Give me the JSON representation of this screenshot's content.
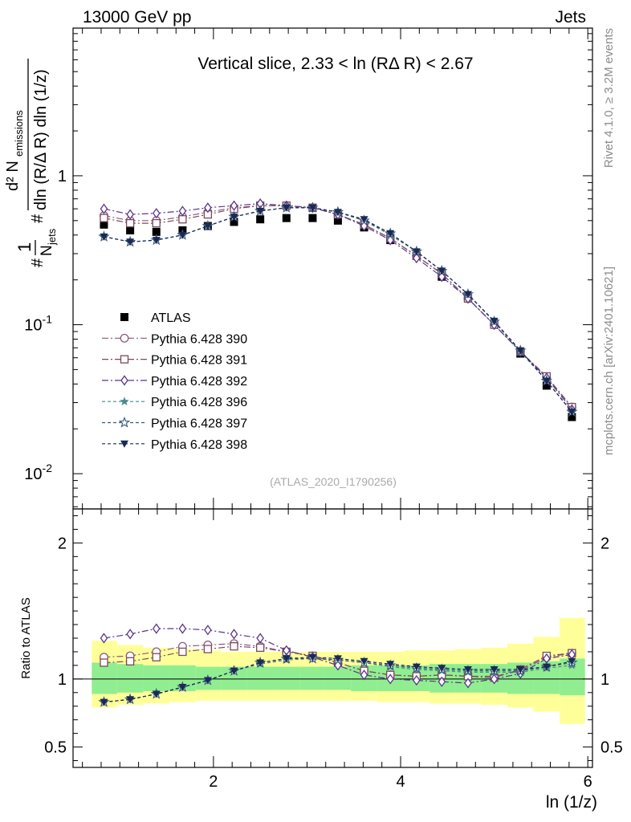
{
  "header": {
    "energy_label": "13000 GeV pp",
    "process_label": "Jets"
  },
  "side_labels": {
    "rivet": "Rivet 4.1.0, ≥ 3.2M events",
    "source": "mcplots.cern.ch [arXiv:2401.10621]"
  },
  "analysis_id": "(ATLAS_2020_I1790256)",
  "colors": {
    "data": "#000000",
    "p390": "#8a5a7f",
    "p391": "#7a4a5a",
    "p392": "#5a3590",
    "p396": "#4a8a8a",
    "p397": "#3a5a7a",
    "p398": "#1a2a55",
    "band_inner": "#90ee90",
    "band_outer": "#ffff99"
  },
  "chart_data": [
    {
      "type": "scatter",
      "title": "Vertical slice, 2.33 < ln (RΔ R) < 2.67",
      "xlabel": "ln (1/z)",
      "ylabel": "1/N_jets d²N_emissions / dln(R/ΔR) dln(1/z)",
      "y_scale": "log",
      "xlim": [
        0.5,
        6.05
      ],
      "ylim": [
        0.0058,
        9.8
      ],
      "y_ticks": [
        0.01,
        0.1,
        1
      ],
      "y_tick_labels": [
        "10^-2",
        "10^-1",
        "1"
      ],
      "x": [
        0.83,
        1.11,
        1.39,
        1.67,
        1.94,
        2.22,
        2.5,
        2.78,
        3.06,
        3.33,
        3.61,
        3.89,
        4.17,
        4.44,
        4.72,
        5.0,
        5.28,
        5.56,
        5.83
      ],
      "series": [
        {
          "name": "ATLAS",
          "key": "data",
          "marker": "square",
          "values": [
            0.47,
            0.43,
            0.42,
            0.43,
            0.46,
            0.49,
            0.51,
            0.52,
            0.52,
            0.5,
            0.45,
            0.37,
            0.29,
            0.21,
            0.15,
            0.1,
            0.064,
            0.039,
            0.024
          ]
        },
        {
          "name": "Pythia 6.428 390",
          "key": "p390",
          "marker": "circle-open",
          "dash": "8,3,2,3",
          "values": [
            0.54,
            0.5,
            0.5,
            0.53,
            0.57,
            0.61,
            0.63,
            0.63,
            0.61,
            0.55,
            0.47,
            0.38,
            0.29,
            0.22,
            0.15,
            0.1,
            0.066,
            0.044,
            0.028
          ]
        },
        {
          "name": "Pythia 6.428 391",
          "key": "p391",
          "marker": "square-open",
          "dash": "8,3,2,3",
          "values": [
            0.52,
            0.48,
            0.48,
            0.51,
            0.55,
            0.6,
            0.63,
            0.63,
            0.61,
            0.55,
            0.47,
            0.38,
            0.29,
            0.22,
            0.15,
            0.1,
            0.066,
            0.045,
            0.028
          ]
        },
        {
          "name": "Pythia 6.428 392",
          "key": "p392",
          "marker": "diamond-open",
          "dash": "8,3,2,3",
          "values": [
            0.6,
            0.55,
            0.56,
            0.58,
            0.61,
            0.63,
            0.65,
            0.63,
            0.61,
            0.55,
            0.46,
            0.37,
            0.28,
            0.21,
            0.15,
            0.1,
            0.066,
            0.044,
            0.027
          ]
        },
        {
          "name": "Pythia 6.428 396",
          "key": "p396",
          "marker": "star",
          "dash": "4,3",
          "values": [
            0.39,
            0.36,
            0.37,
            0.4,
            0.46,
            0.53,
            0.58,
            0.61,
            0.61,
            0.57,
            0.5,
            0.4,
            0.31,
            0.23,
            0.16,
            0.105,
            0.066,
            0.042,
            0.026
          ]
        },
        {
          "name": "Pythia 6.428 397",
          "key": "p397",
          "marker": "star-open",
          "dash": "4,3",
          "values": [
            0.39,
            0.36,
            0.37,
            0.4,
            0.46,
            0.53,
            0.58,
            0.61,
            0.61,
            0.57,
            0.5,
            0.41,
            0.31,
            0.23,
            0.16,
            0.105,
            0.067,
            0.042,
            0.026
          ]
        },
        {
          "name": "Pythia 6.428 398",
          "key": "p398",
          "marker": "triangle-down",
          "dash": "4,3",
          "values": [
            0.39,
            0.36,
            0.37,
            0.4,
            0.46,
            0.53,
            0.58,
            0.61,
            0.61,
            0.57,
            0.51,
            0.41,
            0.31,
            0.23,
            0.16,
            0.106,
            0.067,
            0.042,
            0.026
          ]
        }
      ]
    },
    {
      "type": "scatter",
      "title": "",
      "xlabel": "ln (1/z)",
      "ylabel": "Ratio to ATLAS",
      "xlim": [
        0.5,
        6.05
      ],
      "ylim": [
        0.35,
        2.25
      ],
      "x_ticks": [
        2,
        4,
        6
      ],
      "x_tick_labels": [
        "2",
        "4",
        "6"
      ],
      "y_ticks": [
        0.5,
        1,
        2
      ],
      "y_tick_labels": [
        "0.5",
        "1",
        "2"
      ],
      "x": [
        0.83,
        1.11,
        1.39,
        1.67,
        1.94,
        2.22,
        2.5,
        2.78,
        3.06,
        3.33,
        3.61,
        3.89,
        4.17,
        4.44,
        4.72,
        5.0,
        5.28,
        5.56,
        5.83
      ],
      "bin_edges": [
        0.7,
        0.97,
        1.25,
        1.53,
        1.81,
        2.08,
        2.36,
        2.64,
        2.92,
        3.19,
        3.47,
        3.75,
        4.03,
        4.31,
        4.58,
        4.86,
        5.14,
        5.42,
        5.7,
        5.97
      ],
      "band_inner": {
        "lo": [
          0.89,
          0.9,
          0.91,
          0.91,
          0.92,
          0.92,
          0.92,
          0.92,
          0.92,
          0.92,
          0.91,
          0.91,
          0.91,
          0.9,
          0.9,
          0.9,
          0.89,
          0.89,
          0.88
        ],
        "hi": [
          1.12,
          1.11,
          1.1,
          1.1,
          1.09,
          1.09,
          1.09,
          1.09,
          1.09,
          1.09,
          1.1,
          1.1,
          1.1,
          1.11,
          1.11,
          1.11,
          1.12,
          1.13,
          1.15
        ]
      },
      "band_outer": {
        "lo": [
          0.79,
          0.81,
          0.82,
          0.83,
          0.84,
          0.84,
          0.84,
          0.84,
          0.84,
          0.84,
          0.84,
          0.83,
          0.83,
          0.82,
          0.82,
          0.81,
          0.79,
          0.76,
          0.67
        ],
        "hi": [
          1.28,
          1.25,
          1.23,
          1.22,
          1.21,
          1.2,
          1.2,
          1.2,
          1.2,
          1.2,
          1.2,
          1.2,
          1.21,
          1.21,
          1.22,
          1.23,
          1.26,
          1.31,
          1.45
        ]
      },
      "series": [
        {
          "name": "Pythia 6.428 390",
          "key": "p390",
          "marker": "circle-open",
          "dash": "8,3,2,3",
          "values": [
            1.16,
            1.17,
            1.2,
            1.24,
            1.25,
            1.26,
            1.24,
            1.2,
            1.17,
            1.12,
            1.06,
            1.03,
            1.02,
            1.03,
            1.02,
            1.02,
            1.06,
            1.16,
            1.19
          ]
        },
        {
          "name": "Pythia 6.428 391",
          "key": "p391",
          "marker": "square-open",
          "dash": "8,3,2,3",
          "values": [
            1.12,
            1.13,
            1.16,
            1.2,
            1.22,
            1.24,
            1.23,
            1.2,
            1.17,
            1.12,
            1.06,
            1.03,
            1.02,
            1.03,
            1.02,
            1.01,
            1.07,
            1.17,
            1.19
          ]
        },
        {
          "name": "Pythia 6.428 392",
          "key": "p392",
          "marker": "diamond-open",
          "dash": "8,3,2,3",
          "values": [
            1.3,
            1.33,
            1.37,
            1.37,
            1.36,
            1.33,
            1.3,
            1.21,
            1.16,
            1.1,
            1.03,
            1.0,
            0.99,
            0.98,
            0.97,
            1.0,
            1.04,
            1.15,
            1.18
          ]
        },
        {
          "name": "Pythia 6.428 396",
          "key": "p396",
          "marker": "star",
          "dash": "4,3",
          "values": [
            0.83,
            0.85,
            0.89,
            0.94,
            0.99,
            1.06,
            1.11,
            1.14,
            1.15,
            1.14,
            1.12,
            1.09,
            1.07,
            1.06,
            1.05,
            1.05,
            1.05,
            1.08,
            1.1
          ]
        },
        {
          "name": "Pythia 6.428 397",
          "key": "p397",
          "marker": "star-open",
          "dash": "4,3",
          "values": [
            0.83,
            0.85,
            0.89,
            0.94,
            0.99,
            1.06,
            1.12,
            1.15,
            1.15,
            1.14,
            1.12,
            1.1,
            1.08,
            1.07,
            1.06,
            1.06,
            1.06,
            1.09,
            1.12
          ]
        },
        {
          "name": "Pythia 6.428 398",
          "key": "p398",
          "marker": "triangle-down",
          "dash": "4,3",
          "values": [
            0.83,
            0.85,
            0.89,
            0.94,
            0.99,
            1.06,
            1.12,
            1.15,
            1.16,
            1.15,
            1.13,
            1.11,
            1.09,
            1.08,
            1.07,
            1.07,
            1.07,
            1.09,
            1.13
          ]
        }
      ]
    }
  ]
}
